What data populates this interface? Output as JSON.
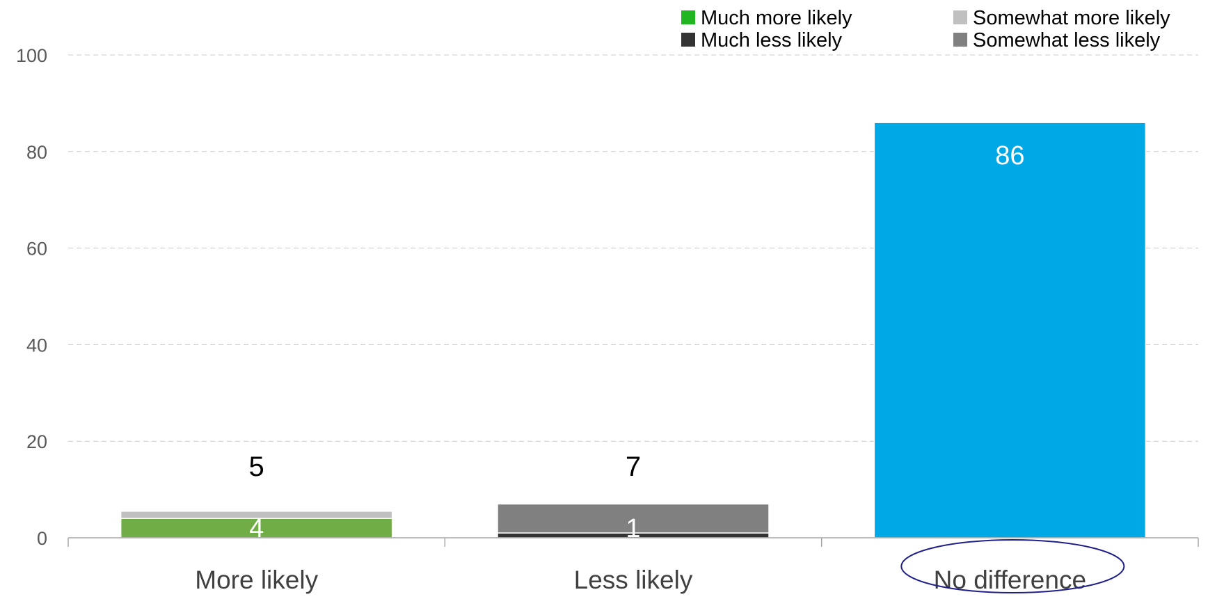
{
  "chart_data": {
    "type": "bar",
    "stacked": true,
    "categories": [
      "More likely",
      "Less likely",
      "No difference"
    ],
    "highlighted_category": "No difference",
    "ylim": [
      0,
      100
    ],
    "yticks": [
      0,
      20,
      40,
      60,
      80,
      100
    ],
    "grid": true,
    "legend_position": "top-right",
    "legend": [
      {
        "label": "Much more likely",
        "color": "#21b521"
      },
      {
        "label": "Somewhat more likely",
        "color": "#c0c0c0"
      },
      {
        "label": "Much less likely",
        "color": "#333333"
      },
      {
        "label": "Somewhat less likely",
        "color": "#808080"
      }
    ],
    "series": [
      {
        "name": "Much more likely",
        "color": "#70ad47",
        "values": [
          4,
          null,
          null
        ]
      },
      {
        "name": "Somewhat more likely",
        "color": "#c0c0c0",
        "values": [
          1.5,
          null,
          null
        ]
      },
      {
        "name": "Much less likely",
        "color": "#333333",
        "values": [
          null,
          1,
          null
        ]
      },
      {
        "name": "Somewhat less likely",
        "color": "#808080",
        "values": [
          null,
          6,
          null
        ]
      },
      {
        "name": "No difference",
        "color": "#00a9e6",
        "values": [
          null,
          null,
          86
        ]
      }
    ],
    "inner_labels": [
      {
        "category": "More likely",
        "text": "4",
        "value": 4
      },
      {
        "category": "Less likely",
        "text": "1",
        "value": 1
      },
      {
        "category": "No difference",
        "text": "86",
        "value": 86
      }
    ],
    "total_labels": [
      {
        "category": "More likely",
        "text": "5"
      },
      {
        "category": "Less likely",
        "text": "7"
      }
    ],
    "title": "",
    "xlabel": "",
    "ylabel": ""
  }
}
